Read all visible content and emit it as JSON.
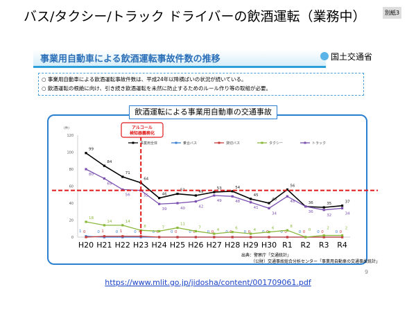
{
  "title": "バス/タクシー/トラック ドライバーの飲酒運転（業務中）",
  "badge": "別紙3",
  "subhead": "事業用自動車による飲酒運転事故件数の推移",
  "logo_text": "国土交通省",
  "bullets": [
    "○ 事業用自動車による飲酒運転事故件数は、平成24年以降横ばいの状況が続いている。",
    "○ 飲酒運転の根絶に向け、引き続き飲酒運転を未然に防止するためのルール作り等の取組が必要。"
  ],
  "chart_data": {
    "type": "line",
    "title": "飲酒運転による事業用自動車の交通事故",
    "ylabel": "(件)",
    "ylim": [
      0,
      120
    ],
    "yticks": [
      0,
      20,
      40,
      60,
      80,
      100,
      120
    ],
    "categories": [
      "H20",
      "H21",
      "H22",
      "H23",
      "H24",
      "H25",
      "H26",
      "H27",
      "H28",
      "H29",
      "H30",
      "R1",
      "R2",
      "R3",
      "R4"
    ],
    "annotation": [
      "アルコール",
      "検知器義務化"
    ],
    "annotation_category": "H23",
    "reference_line": 55,
    "legend_position": "top",
    "series": [
      {
        "name": "事業用全体",
        "color": "#000000",
        "values": [
          99,
          84,
          71,
          64,
          46,
          51,
          49,
          53,
          54,
          45,
          40,
          56,
          36,
          35,
          37
        ]
      },
      {
        "name": "乗合バス",
        "color": "#3a7fd0",
        "values": [
          1,
          0,
          0,
          0,
          0,
          0,
          0,
          0,
          0,
          0,
          0,
          0,
          0,
          0,
          0
        ]
      },
      {
        "name": "貸切バス",
        "color": "#c83a3a",
        "values": [
          0,
          1,
          1,
          1,
          0,
          0,
          0,
          0,
          0,
          0,
          0,
          0,
          0,
          0,
          0
        ]
      },
      {
        "name": "タクシー",
        "color": "#8ab83a",
        "values": [
          18,
          14,
          14,
          8,
          7,
          11,
          7,
          4,
          6,
          4,
          6,
          8,
          0,
          2,
          2
        ]
      },
      {
        "name": "トラック",
        "color": "#7a4fb0",
        "values": [
          80,
          69,
          56,
          55,
          39,
          40,
          42,
          49,
          48,
          41,
          34,
          48,
          36,
          32,
          34
        ]
      }
    ]
  },
  "source": [
    "出典：警察庁「交通統計」",
    "（公財）交通事故総合分析センター「事業用自動車の交通事故統計」"
  ],
  "page_number": "9",
  "url": "https://www.mlit.go.jp/jidosha/content/001709061.pdf"
}
